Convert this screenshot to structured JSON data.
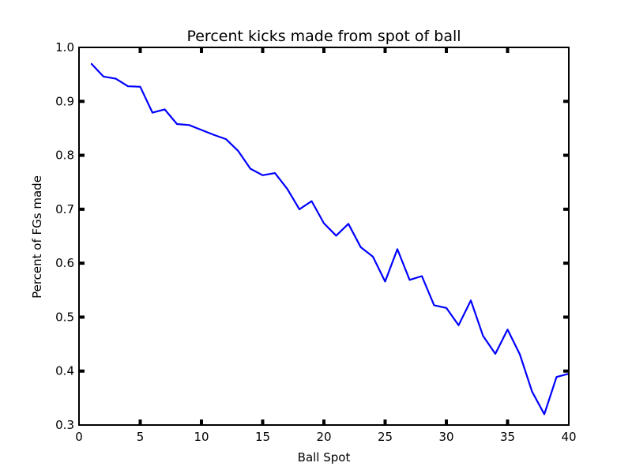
{
  "chart_data": {
    "type": "line",
    "title": "Percent kicks made from spot of ball",
    "xlabel": "Ball Spot",
    "ylabel": "Percent of FGs made",
    "xlim": [
      0,
      40
    ],
    "ylim": [
      0.3,
      1.0
    ],
    "xticks": [
      "0",
      "5",
      "10",
      "15",
      "20",
      "25",
      "30",
      "35",
      "40"
    ],
    "yticks": [
      "0.3",
      "0.4",
      "0.5",
      "0.6",
      "0.7",
      "0.8",
      "0.9",
      "1.0"
    ],
    "grid": false,
    "series": [
      {
        "color": "#0000ff",
        "x": [
          1,
          2,
          3,
          4,
          5,
          6,
          7,
          8,
          9,
          10,
          11,
          12,
          13,
          14,
          15,
          16,
          17,
          18,
          19,
          20,
          21,
          22,
          23,
          24,
          25,
          26,
          27,
          28,
          29,
          30,
          31,
          32,
          33,
          34,
          35,
          36,
          37,
          38,
          39,
          40
        ],
        "y": [
          0.97,
          0.946,
          0.942,
          0.928,
          0.927,
          0.879,
          0.885,
          0.858,
          0.856,
          0.847,
          0.838,
          0.83,
          0.808,
          0.775,
          0.763,
          0.767,
          0.738,
          0.7,
          0.715,
          0.674,
          0.651,
          0.673,
          0.63,
          0.612,
          0.566,
          0.626,
          0.569,
          0.576,
          0.522,
          0.517,
          0.485,
          0.531,
          0.465,
          0.432,
          0.477,
          0.431,
          0.362,
          0.32,
          0.389,
          0.395
        ]
      }
    ]
  }
}
